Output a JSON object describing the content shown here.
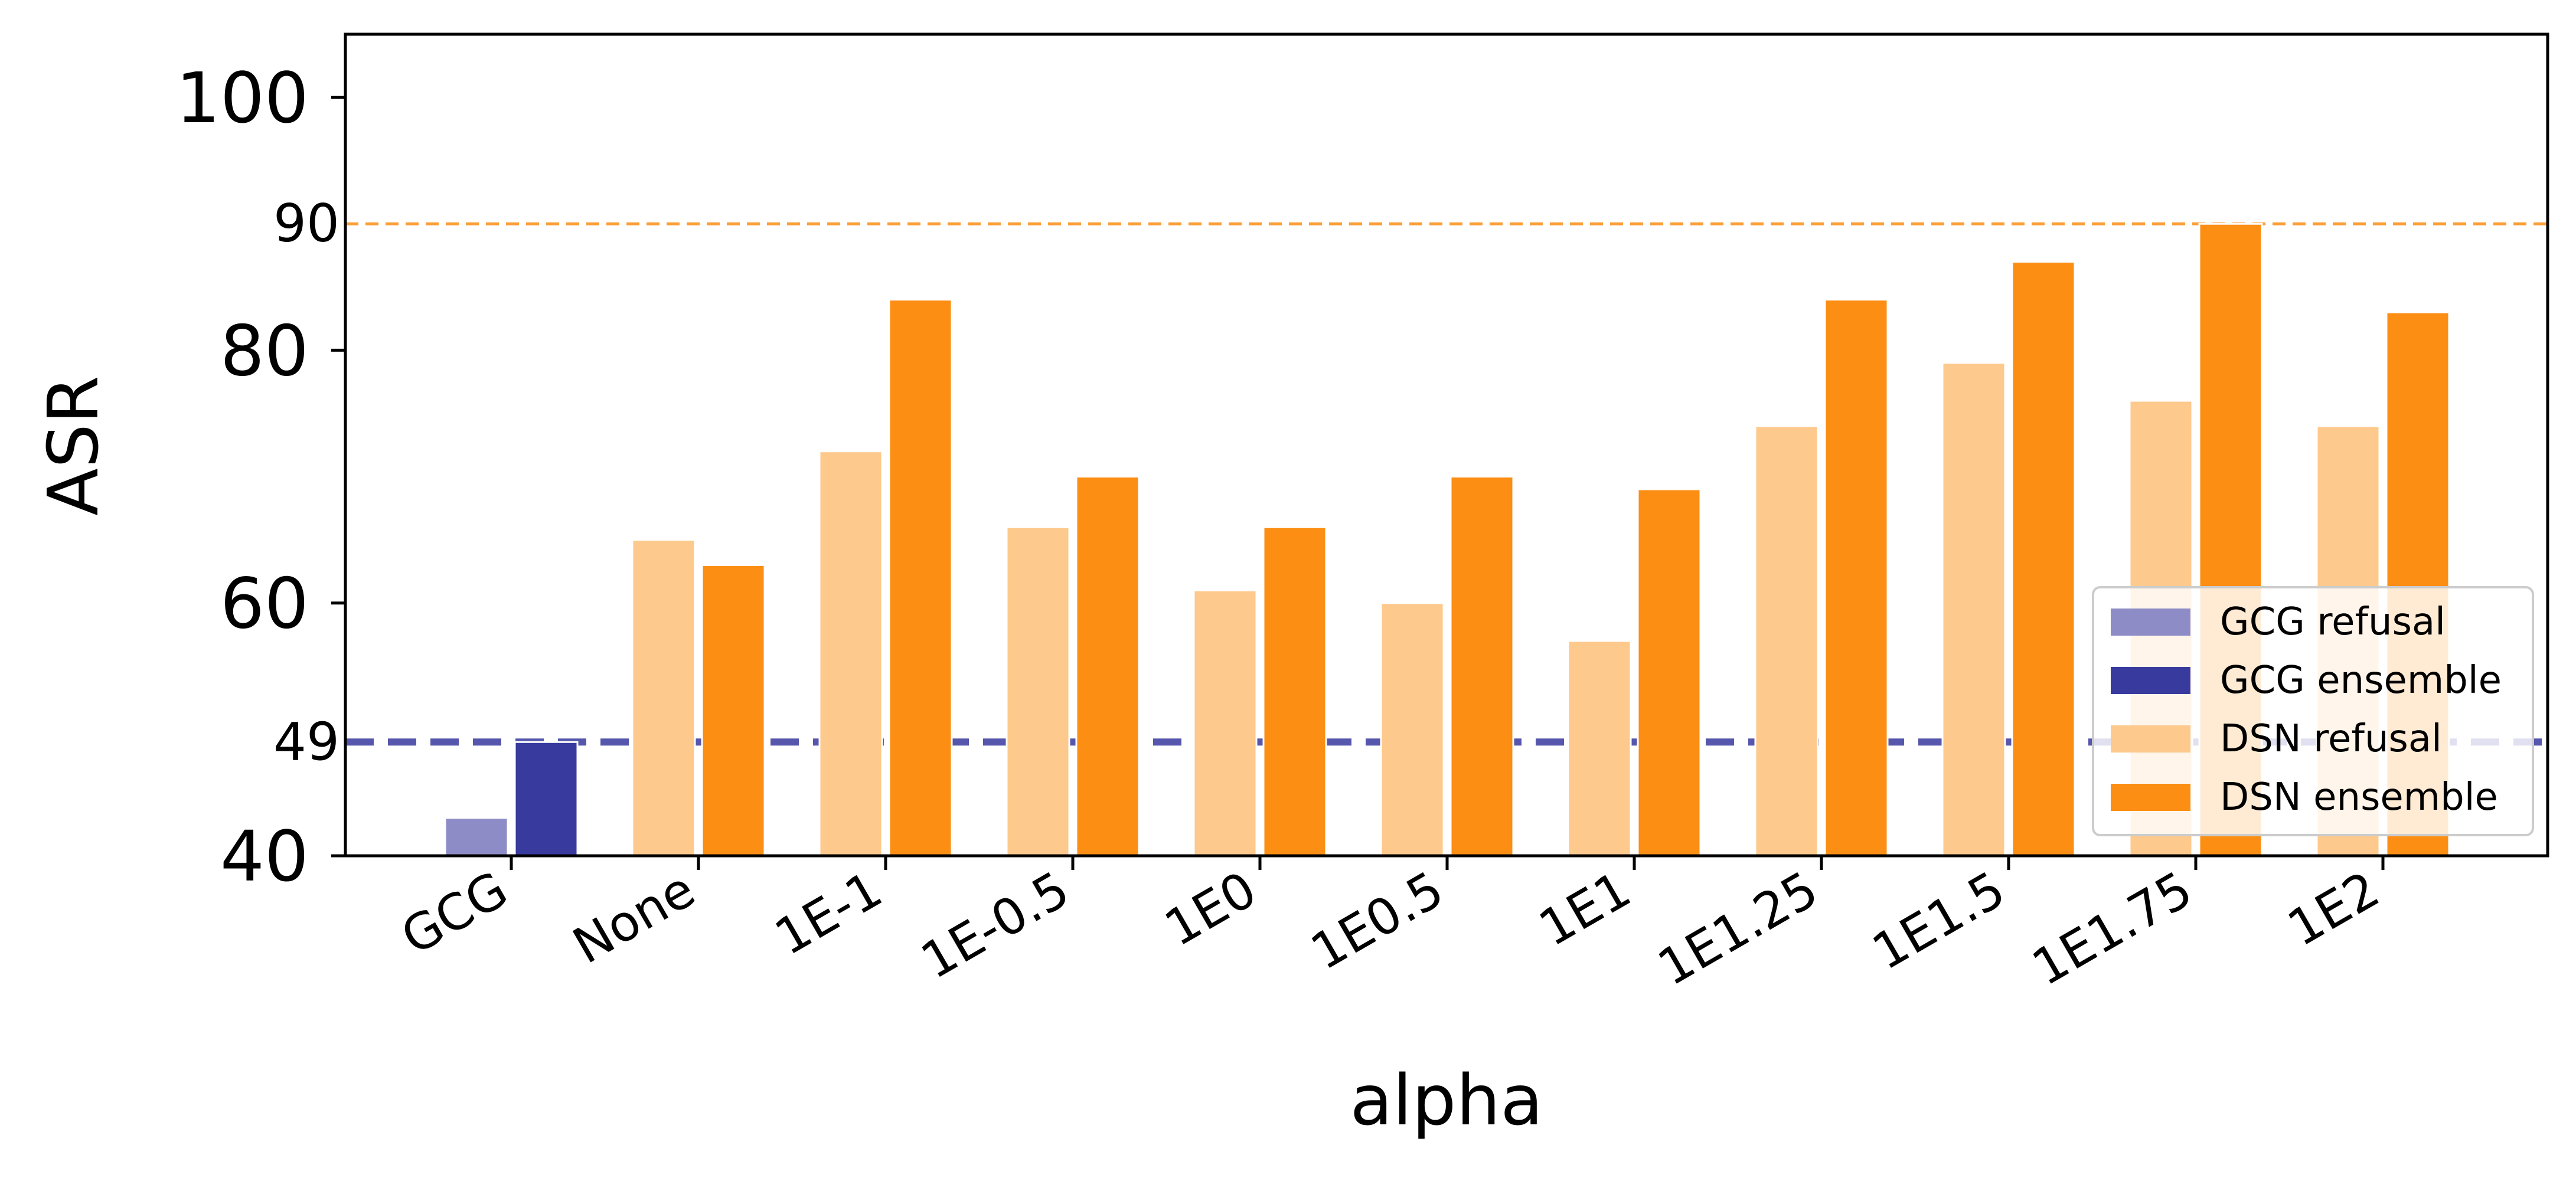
{
  "chart_data": {
    "type": "bar",
    "xlabel": "alpha",
    "ylabel": "ASR",
    "ylim": [
      40,
      105
    ],
    "yticks": [
      40,
      60,
      80,
      100
    ],
    "categories": [
      "GCG",
      "None",
      "1E-1",
      "1E-0.5",
      "1E0",
      "1E0.5",
      "1E1",
      "1E1.25",
      "1E1.5",
      "1E1.75",
      "1E2"
    ],
    "series": [
      {
        "name": "GCG refusal",
        "color": "#8d8cc6",
        "values": [
          43,
          null,
          null,
          null,
          null,
          null,
          null,
          null,
          null,
          null,
          null
        ]
      },
      {
        "name": "GCG ensemble",
        "color": "#393a9e",
        "values": [
          49,
          null,
          null,
          null,
          null,
          null,
          null,
          null,
          null,
          null,
          null
        ]
      },
      {
        "name": "DSN refusal",
        "color": "#fec98c",
        "values": [
          null,
          65,
          72,
          66,
          61,
          60,
          57,
          74,
          79,
          76,
          74
        ]
      },
      {
        "name": "DSN ensemble",
        "color": "#fb8e13",
        "values": [
          null,
          63,
          84,
          70,
          66,
          70,
          69,
          84,
          87,
          90,
          83
        ]
      }
    ],
    "reference_lines": [
      {
        "value": 90,
        "label": "90",
        "color": "#fb8e13",
        "label_color": "#fb8e13"
      },
      {
        "value": 49,
        "label": "49",
        "color": "#393a9e",
        "label_color": "#0a0a8a"
      }
    ],
    "legend_position": "lower-right",
    "grid": false
  }
}
